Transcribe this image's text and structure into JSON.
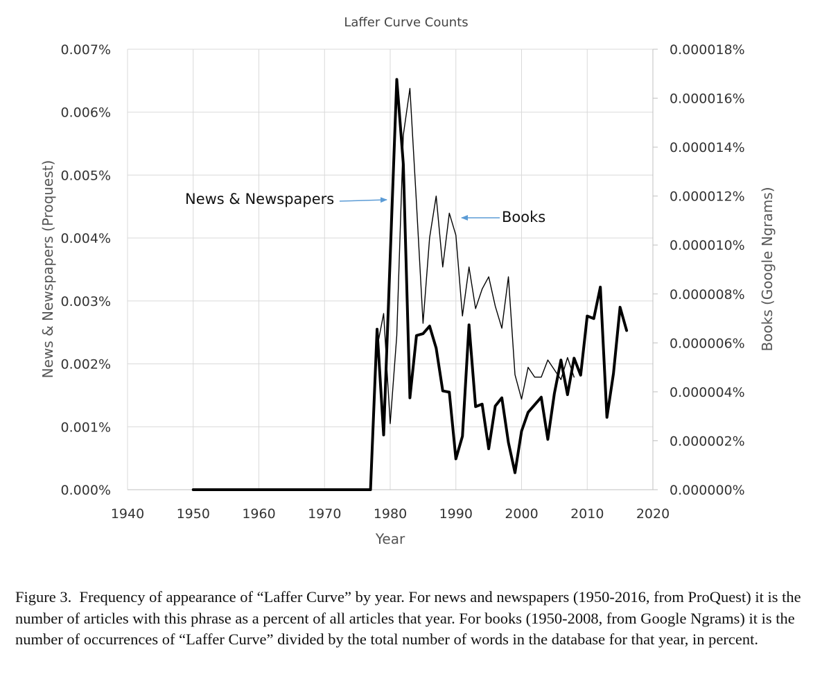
{
  "chart_data": {
    "type": "line",
    "title": "Laffer Curve Counts",
    "xlabel": "Year",
    "ylabel": "News & Newspapers (Proquest)",
    "y2label": "Books (Google Ngrams)",
    "xlim": [
      1940,
      2020
    ],
    "ylim": [
      0,
      0.007
    ],
    "y2lim": [
      0,
      1.8e-05
    ],
    "x_ticks": [
      "1940",
      "1950",
      "1960",
      "1970",
      "1980",
      "1990",
      "2000",
      "2010",
      "2020"
    ],
    "y_ticks": [
      "0.000%",
      "0.001%",
      "0.002%",
      "0.003%",
      "0.004%",
      "0.005%",
      "0.006%",
      "0.007%"
    ],
    "y2_ticks": [
      "0.000000%",
      "0.000002%",
      "0.000004%",
      "0.000006%",
      "0.000008%",
      "0.000010%",
      "0.000012%",
      "0.000014%",
      "0.000016%",
      "0.000018%"
    ],
    "grid": true,
    "series": [
      {
        "name": "News & Newspapers",
        "axis": "left",
        "style": "thick",
        "x": [
          1950,
          1951,
          1952,
          1953,
          1954,
          1955,
          1956,
          1957,
          1958,
          1959,
          1960,
          1961,
          1962,
          1963,
          1964,
          1965,
          1966,
          1967,
          1968,
          1969,
          1970,
          1971,
          1972,
          1973,
          1974,
          1975,
          1976,
          1977,
          1978,
          1979,
          1980,
          1981,
          1982,
          1983,
          1984,
          1985,
          1986,
          1987,
          1988,
          1989,
          1990,
          1991,
          1992,
          1993,
          1994,
          1995,
          1996,
          1997,
          1998,
          1999,
          2000,
          2001,
          2002,
          2003,
          2004,
          2005,
          2006,
          2007,
          2008,
          2009,
          2010,
          2011,
          2012,
          2013,
          2014,
          2015,
          2016
        ],
        "values": [
          0,
          0,
          0,
          0,
          0,
          0,
          0,
          0,
          0,
          0,
          0,
          0,
          0,
          0,
          0,
          0,
          0,
          0,
          0,
          0,
          0,
          0,
          0,
          0,
          0,
          0,
          0,
          0,
          0.00255,
          0.00087,
          0.0037,
          0.00652,
          0.00517,
          0.00146,
          0.00245,
          0.00248,
          0.0026,
          0.00225,
          0.00157,
          0.00155,
          0.00049,
          0.00085,
          0.00262,
          0.00132,
          0.00136,
          0.00065,
          0.00133,
          0.00146,
          0.00075,
          0.00027,
          0.00093,
          0.00123,
          0.00135,
          0.00147,
          0.0008,
          0.00153,
          0.00206,
          0.00151,
          0.00209,
          0.00182,
          0.00276,
          0.00272,
          0.00322,
          0.00115,
          0.00185,
          0.0029,
          0.00253
        ]
      },
      {
        "name": "Books",
        "axis": "right",
        "style": "thin",
        "x": [
          1977,
          1978,
          1979,
          1980,
          1981,
          1982,
          1983,
          1984,
          1985,
          1986,
          1987,
          1988,
          1989,
          1990,
          1991,
          1992,
          1993,
          1994,
          1995,
          1996,
          1997,
          1998,
          1999,
          2000,
          2001,
          2002,
          2003,
          2004,
          2005,
          2006,
          2007,
          2008
        ],
        "values": [
          0,
          5.8e-06,
          7.2e-06,
          2.7e-06,
          6.3e-06,
          1.45e-05,
          1.64e-05,
          1.17e-05,
          6.8e-06,
          1.03e-05,
          1.2e-05,
          9.1e-06,
          1.13e-05,
          1.04e-05,
          7.1e-06,
          9.1e-06,
          7.4e-06,
          8.2e-06,
          8.7e-06,
          7.5e-06,
          6.6e-06,
          8.7e-06,
          4.7e-06,
          3.7e-06,
          5e-06,
          4.6e-06,
          4.6e-06,
          5.3e-06,
          4.9e-06,
          4.5e-06,
          5.4e-06,
          4.6e-06
        ]
      }
    ],
    "annotations": [
      {
        "text": "News & Newspapers",
        "target": "News & Newspapers"
      },
      {
        "text": "Books",
        "target": "Books"
      }
    ]
  },
  "caption": {
    "label": "Figure 3.",
    "text": "Frequency of appearance of “Laffer Curve” by year. For news and newspapers (1950-2016, from ProQuest) it is the number of articles with this phrase as a percent of all articles that year. For books (1950-2008, from Google Ngrams) it is the number of occurrences of “Laffer Curve” divided by the total number of words in the database for that year, in percent."
  },
  "colors": {
    "news_line": "#000000",
    "books_line": "#000000",
    "gridline": "#d9d9d9",
    "arrow": "#5b9bd5"
  }
}
